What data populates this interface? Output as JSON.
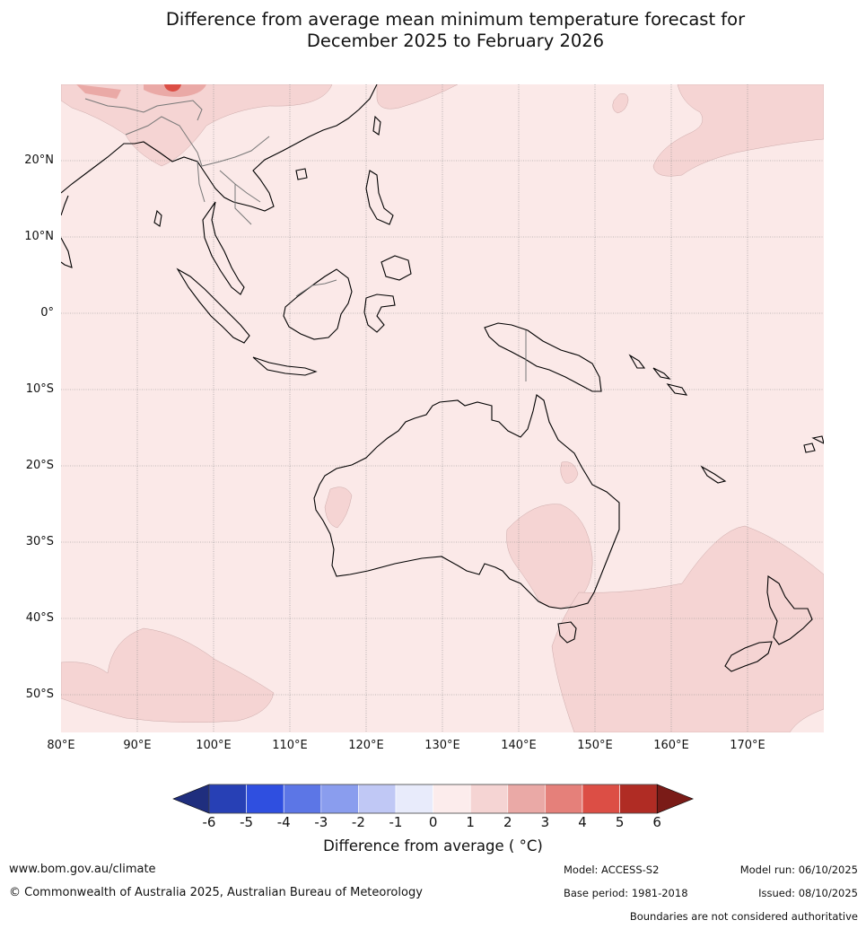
{
  "title": {
    "line1": "Difference from average mean minimum temperature forecast for",
    "line2": "December 2025 to February 2026"
  },
  "map": {
    "background_color": "#fbe9e8",
    "anomaly_color": "#f5d4d3",
    "hot_color": "#eaa9a6",
    "hottest_color": "#dc4e45",
    "lat_labels": [
      "20°N",
      "10°N",
      "0°",
      "10°S",
      "20°S",
      "30°S",
      "40°S",
      "50°S"
    ],
    "lon_labels": [
      "80°E",
      "90°E",
      "100°E",
      "110°E",
      "120°E",
      "130°E",
      "140°E",
      "150°E",
      "160°E",
      "170°E"
    ]
  },
  "colorbar": {
    "colors": [
      "#1f2e7e",
      "#2740b5",
      "#2f4fe0",
      "#5c76e6",
      "#8a9dee",
      "#c0c8f5",
      "#e8ebfb",
      "#fcecec",
      "#f5d4d3",
      "#eaa9a6",
      "#e5807a",
      "#dc4e45",
      "#b02c24",
      "#7a1b17"
    ],
    "ticks": [
      "-6",
      "-5",
      "-4",
      "-3",
      "-2",
      "-1",
      "0",
      "1",
      "2",
      "3",
      "4",
      "5",
      "6"
    ],
    "label": "Difference from average ( °C)"
  },
  "footer": {
    "website": "www.bom.gov.au/climate",
    "copyright": "© Commonwealth of Australia 2025, Australian Bureau of Meteorology",
    "model": "Model: ACCESS-S2",
    "base_period": "Base period: 1981-2018",
    "model_run": "Model run: 06/10/2025",
    "issued": "Issued: 08/10/2025",
    "disclaimer": "Boundaries are not considered authoritative"
  }
}
